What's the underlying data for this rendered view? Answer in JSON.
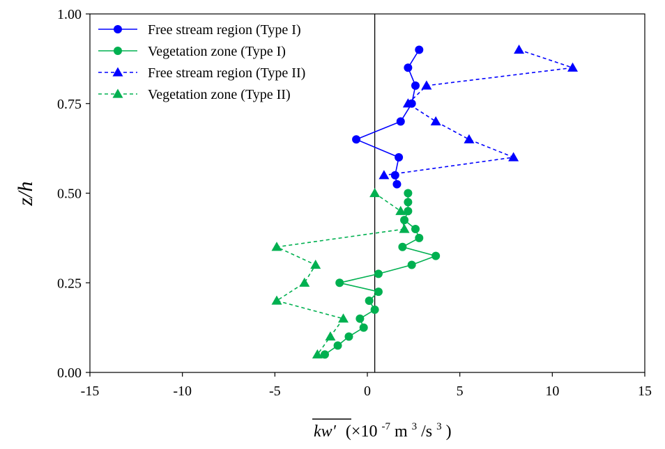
{
  "chart_data": {
    "type": "line",
    "title": "",
    "xlabel_main": "kw′",
    "xlabel_unit": "(×10",
    "xlabel_exp": "-7",
    "xlabel_unit2": " m",
    "xlabel_exp2": "3",
    "xlabel_unit3": "/s",
    "xlabel_exp3": "3",
    "xlabel_close": ")",
    "ylabel": "z/h",
    "xlim": [
      -15,
      15
    ],
    "ylim": [
      0,
      1
    ],
    "xticks": [
      -15,
      -10,
      -5,
      0,
      5,
      10,
      15
    ],
    "yticks": [
      0,
      0.25,
      0.5,
      0.75,
      1.0
    ],
    "xtick_labels": [
      "-15",
      "-10",
      "-5",
      "0",
      "5",
      "10",
      "15"
    ],
    "ytick_labels": [
      "0.00",
      "0.25",
      "0.50",
      "0.75",
      "1.00"
    ],
    "reference_line_x": 0.4,
    "legend_position": "top-left",
    "grid": false,
    "series": [
      {
        "name": "Free stream region (Type I)",
        "color": "#0000ff",
        "marker": "circle",
        "dash": "solid",
        "points": [
          [
            2.8,
            0.9
          ],
          [
            2.2,
            0.85
          ],
          [
            2.6,
            0.8
          ],
          [
            2.4,
            0.75
          ],
          [
            1.8,
            0.7
          ],
          [
            -0.6,
            0.65
          ],
          [
            1.7,
            0.6
          ],
          [
            1.5,
            0.55
          ],
          [
            1.6,
            0.525
          ]
        ]
      },
      {
        "name": "Vegetation zone (Type I)",
        "color": "#00b050",
        "marker": "circle",
        "dash": "solid",
        "points": [
          [
            2.2,
            0.5
          ],
          [
            2.2,
            0.475
          ],
          [
            2.2,
            0.45
          ],
          [
            2.0,
            0.425
          ],
          [
            2.6,
            0.4
          ],
          [
            2.8,
            0.375
          ],
          [
            1.9,
            0.35
          ],
          [
            3.7,
            0.325
          ],
          [
            2.4,
            0.3
          ],
          [
            0.6,
            0.275
          ],
          [
            -1.5,
            0.25
          ],
          [
            0.6,
            0.225
          ],
          [
            0.1,
            0.2
          ],
          [
            0.4,
            0.175
          ],
          [
            -0.4,
            0.15
          ],
          [
            -0.2,
            0.125
          ],
          [
            -1.0,
            0.1
          ],
          [
            -1.6,
            0.075
          ],
          [
            -2.3,
            0.05
          ]
        ]
      },
      {
        "name": "Free stream region (Type II)",
        "color": "#0000ff",
        "marker": "triangle",
        "dash": "dashed",
        "points": [
          [
            8.2,
            0.9
          ],
          [
            11.1,
            0.85
          ],
          [
            3.2,
            0.8
          ],
          [
            2.2,
            0.75
          ],
          [
            3.7,
            0.7
          ],
          [
            5.5,
            0.65
          ],
          [
            7.9,
            0.6
          ],
          [
            0.9,
            0.55
          ]
        ]
      },
      {
        "name": "Vegetation zone (Type II)",
        "color": "#00b050",
        "marker": "triangle",
        "dash": "dashed",
        "points": [
          [
            0.4,
            0.5
          ],
          [
            1.8,
            0.45
          ],
          [
            2.0,
            0.4
          ],
          [
            -4.9,
            0.35
          ],
          [
            -2.8,
            0.3
          ],
          [
            -3.4,
            0.25
          ],
          [
            -4.9,
            0.2
          ],
          [
            -1.3,
            0.15
          ],
          [
            -2.0,
            0.1
          ],
          [
            -2.7,
            0.05
          ]
        ]
      }
    ]
  }
}
